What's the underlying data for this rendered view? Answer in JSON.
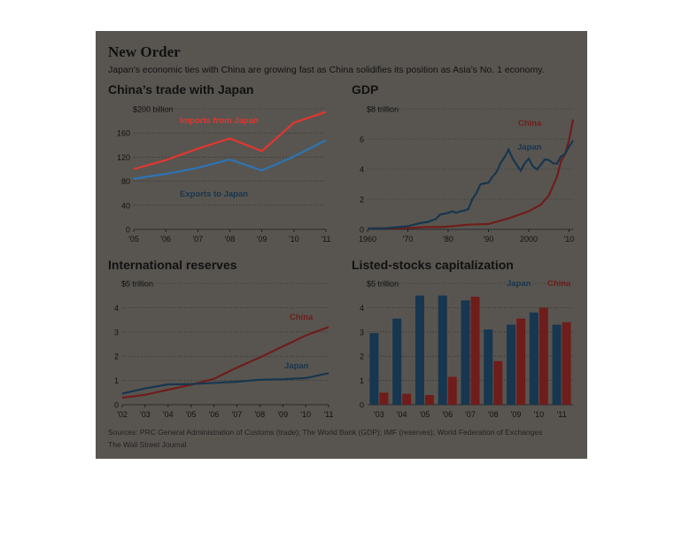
{
  "header": {
    "title": "New Order",
    "subtitle": "Japan’s economic ties with China are growing fast as China solidifies its position as Asia’s No. 1 economy."
  },
  "colors": {
    "background": "#585550",
    "china": "#6f1d1b",
    "japan": "#17364f",
    "imports": "#e2362f",
    "exports": "#2d74b4",
    "gridline": "#2a2a2a"
  },
  "chart_data": [
    {
      "type": "line",
      "title": "China’s trade with Japan",
      "unit_label": "$200 billion",
      "x": [
        "'05",
        "'06",
        "'07",
        "'08",
        "'09",
        "'10",
        "'11"
      ],
      "x_values": [
        2005,
        2006,
        2007,
        2008,
        2009,
        2010,
        2011
      ],
      "ylim": [
        0,
        200
      ],
      "yticks": [
        0,
        40,
        80,
        120,
        160,
        200
      ],
      "ytick_labels": [
        "0",
        "40",
        "80",
        "120",
        "160",
        ""
      ],
      "series": [
        {
          "name": "Imports from Japan",
          "color_key": "imports",
          "values": [
            100,
            115,
            134,
            151,
            130,
            177,
            195
          ]
        },
        {
          "name": "Exports to Japan",
          "color_key": "exports",
          "values": [
            84,
            92,
            102,
            116,
            98,
            121,
            148
          ]
        }
      ]
    },
    {
      "type": "line",
      "title": "GDP",
      "unit_label": "$8 trillion",
      "x_ticks": [
        1960,
        1970,
        1980,
        1990,
        2000,
        2010
      ],
      "x_tick_labels": [
        "1960",
        "'70",
        "'80",
        "'90",
        "2000",
        "'10"
      ],
      "xlim": [
        1960,
        2011
      ],
      "ylim": [
        0,
        8
      ],
      "yticks": [
        0,
        2,
        4,
        6,
        8
      ],
      "ytick_labels": [
        "0",
        "2",
        "4",
        "6",
        ""
      ],
      "series": [
        {
          "name": "China",
          "color_key": "china",
          "x": [
            1960,
            1965,
            1970,
            1975,
            1978,
            1980,
            1985,
            1990,
            1995,
            2000,
            2003,
            2005,
            2007,
            2008,
            2009,
            2010,
            2011
          ],
          "values": [
            0.06,
            0.07,
            0.09,
            0.16,
            0.15,
            0.19,
            0.31,
            0.36,
            0.73,
            1.2,
            1.64,
            2.26,
            3.49,
            4.52,
            4.99,
            5.93,
            7.3
          ]
        },
        {
          "name": "Japan",
          "color_key": "japan",
          "x": [
            1960,
            1965,
            1970,
            1973,
            1975,
            1977,
            1978,
            1980,
            1981,
            1982,
            1983,
            1984,
            1985,
            1986,
            1987,
            1988,
            1990,
            1991,
            1992,
            1993,
            1994,
            1995,
            1996,
            1997,
            1998,
            1999,
            2000,
            2001,
            2002,
            2003,
            2004,
            2005,
            2006,
            2007,
            2008,
            2009,
            2010,
            2011
          ],
          "values": [
            0.04,
            0.09,
            0.21,
            0.42,
            0.5,
            0.7,
            0.98,
            1.09,
            1.2,
            1.1,
            1.2,
            1.25,
            1.35,
            2.0,
            2.4,
            3.0,
            3.1,
            3.5,
            3.8,
            4.4,
            4.8,
            5.3,
            4.7,
            4.3,
            3.9,
            4.4,
            4.7,
            4.2,
            3.98,
            4.3,
            4.65,
            4.6,
            4.4,
            4.36,
            4.85,
            5.0,
            5.5,
            5.9
          ]
        }
      ]
    },
    {
      "type": "line",
      "title": "International reserves",
      "unit_label": "$5 trillion",
      "x": [
        "'02",
        "'03",
        "'04",
        "'05",
        "'06",
        "'07",
        "'08",
        "'09",
        "'10",
        "'11"
      ],
      "x_values": [
        2002,
        2003,
        2004,
        2005,
        2006,
        2007,
        2008,
        2009,
        2010,
        2011
      ],
      "ylim": [
        0,
        5
      ],
      "yticks": [
        0,
        1,
        2,
        3,
        4,
        5
      ],
      "ytick_labels": [
        "0",
        "1",
        "2",
        "3",
        "4",
        ""
      ],
      "series": [
        {
          "name": "China",
          "color_key": "china",
          "values": [
            0.29,
            0.41,
            0.62,
            0.82,
            1.07,
            1.53,
            1.95,
            2.4,
            2.85,
            3.2
          ]
        },
        {
          "name": "Japan",
          "color_key": "japan",
          "values": [
            0.46,
            0.67,
            0.84,
            0.85,
            0.9,
            0.95,
            1.03,
            1.05,
            1.1,
            1.3
          ]
        }
      ]
    },
    {
      "type": "bar",
      "title": "Listed-stocks capitalization",
      "unit_label": "$5 trillion",
      "categories": [
        "'03",
        "'04",
        "'05",
        "'06",
        "'07",
        "'08",
        "'09",
        "'10",
        "'11"
      ],
      "ylim": [
        0,
        5
      ],
      "yticks": [
        0,
        1,
        2,
        3,
        4,
        5
      ],
      "ytick_labels": [
        "0",
        "1",
        "2",
        "3",
        "4",
        ""
      ],
      "series": [
        {
          "name": "Japan",
          "color_key": "japan",
          "values": [
            2.95,
            3.55,
            4.5,
            4.5,
            4.3,
            3.1,
            3.3,
            3.8,
            3.3
          ]
        },
        {
          "name": "China",
          "color_key": "china",
          "values": [
            0.5,
            0.45,
            0.4,
            1.15,
            4.45,
            1.8,
            3.55,
            4.0,
            3.4
          ]
        }
      ]
    }
  ],
  "footer": {
    "sources": "Sources: PRC General Administration of Customs (trade); The World Bank (GDP); IMF (reserves); World Federation of Exchanges",
    "credit": "The Wall Street Journal"
  }
}
